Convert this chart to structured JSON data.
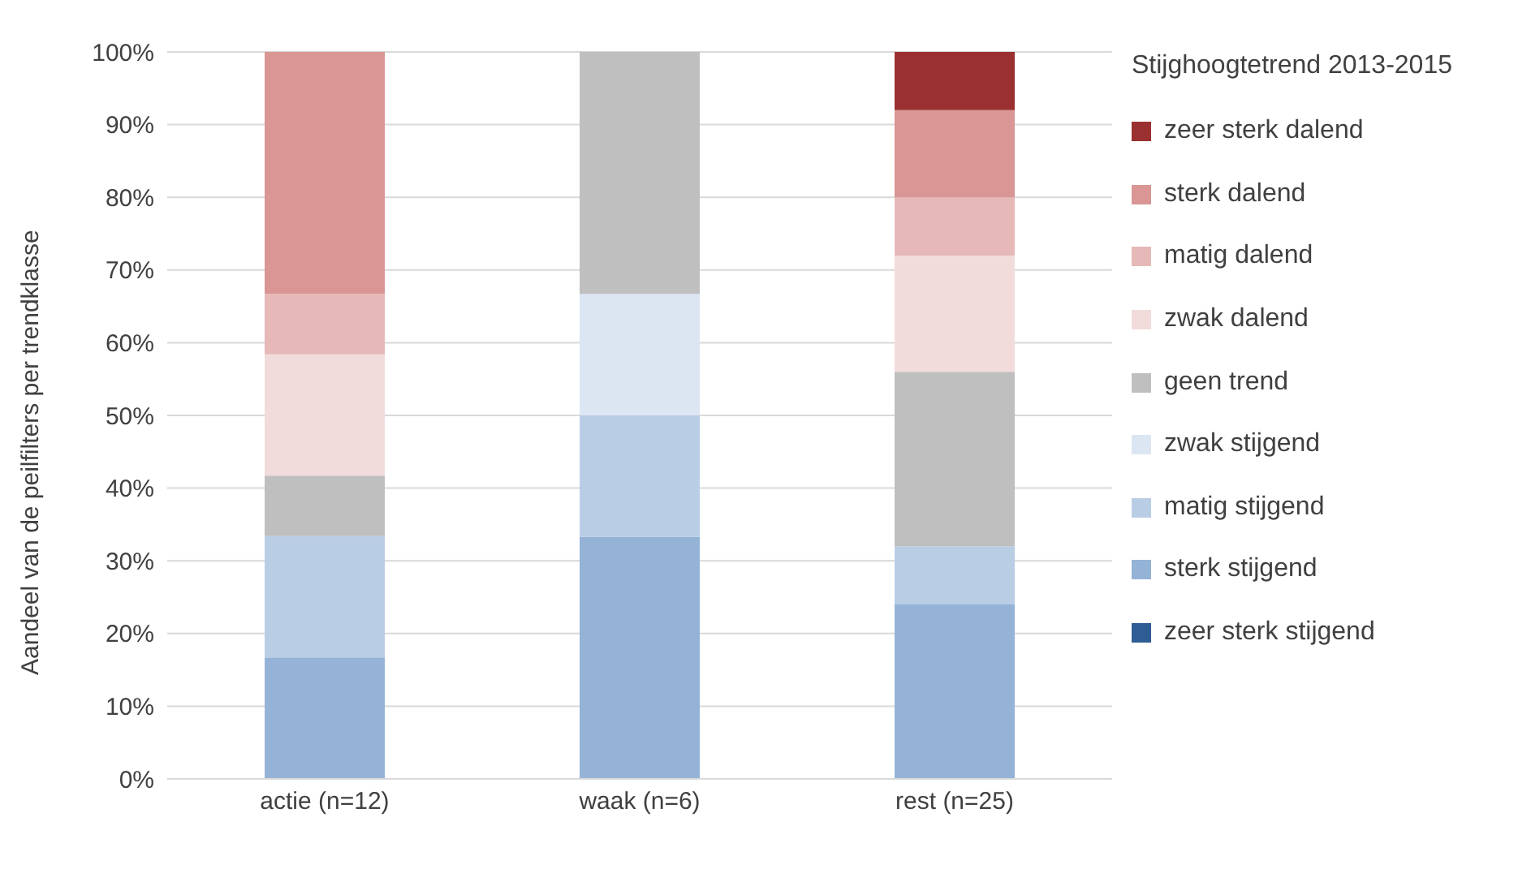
{
  "chart_data": {
    "type": "bar",
    "stacked": true,
    "ylabel": "Aandeel van de peilfilters per trendklasse",
    "legend_title": "Stijghoogtetrend 2013-2015",
    "legend": "right",
    "grid": "y",
    "categories": [
      "actie (n=12)",
      "waak (n=6)",
      "rest (n=25)"
    ],
    "ylim": [
      0,
      100
    ],
    "yticks": [
      {
        "value": 0,
        "label": "0%"
      },
      {
        "value": 10,
        "label": "10%"
      },
      {
        "value": 20,
        "label": "20%"
      },
      {
        "value": 30,
        "label": "30%"
      },
      {
        "value": 40,
        "label": "40%"
      },
      {
        "value": 50,
        "label": "50%"
      },
      {
        "value": 60,
        "label": "60%"
      },
      {
        "value": 70,
        "label": "70%"
      },
      {
        "value": 80,
        "label": "80%"
      },
      {
        "value": 90,
        "label": "90%"
      },
      {
        "value": 100,
        "label": "100%"
      }
    ],
    "series": [
      {
        "name": "zeer sterk stijgend",
        "color": "#2e5c94",
        "values": [
          0,
          0,
          0
        ]
      },
      {
        "name": "sterk stijgend",
        "color": "#95b3d7",
        "values": [
          16.7,
          33.3,
          24
        ]
      },
      {
        "name": "matig stijgend",
        "color": "#b9cde5",
        "values": [
          16.7,
          16.7,
          8
        ]
      },
      {
        "name": "zwak stijgend",
        "color": "#dce6f2",
        "values": [
          0,
          16.7,
          0
        ]
      },
      {
        "name": "geen trend",
        "color": "#bfbfbf",
        "values": [
          8.3,
          33.3,
          24
        ]
      },
      {
        "name": "zwak dalend",
        "color": "#f2dcdb",
        "values": [
          16.7,
          0,
          16
        ]
      },
      {
        "name": "matig dalend",
        "color": "#e6b9b8",
        "values": [
          8.3,
          0,
          8
        ]
      },
      {
        "name": "sterk dalend",
        "color": "#d99694",
        "values": [
          33.3,
          0,
          12
        ]
      },
      {
        "name": "zeer sterk dalend",
        "color": "#9b3030",
        "values": [
          0,
          0,
          8
        ]
      }
    ]
  }
}
